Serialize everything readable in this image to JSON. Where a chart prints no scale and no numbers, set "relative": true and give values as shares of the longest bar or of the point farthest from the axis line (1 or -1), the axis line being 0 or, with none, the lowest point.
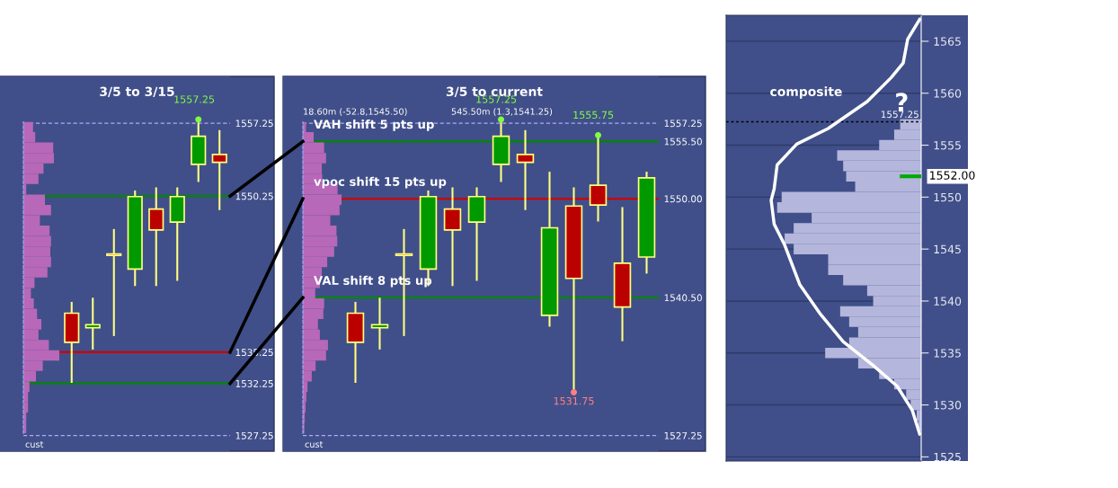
{
  "chart_data": [
    {
      "type": "candlestick",
      "title": "3/5 to 3/15",
      "categories": [
        null,
        null,
        null,
        null,
        null,
        null,
        null,
        null
      ],
      "ylim": [
        1525.75,
        1561.75
      ],
      "tick_labels": "y",
      "yticks": [
        {
          "value": 1557.25,
          "label": "1557.25"
        },
        {
          "value": 1550.25,
          "label": "1550.25"
        },
        {
          "value": 1535.25,
          "label": "1535.25"
        },
        {
          "value": 1532.25,
          "label": "1532.25"
        },
        {
          "value": 1527.25,
          "label": "1527.25"
        }
      ],
      "series": [
        {
          "color": "#ffff80",
          "ohlc": [
            [
              1539,
              1540,
              1532.4,
              1536.2
            ],
            [
              1537.6,
              1540.4,
              1535.6,
              1537.9
            ],
            [
              1544.7,
              1547,
              1536.9,
              1544.55
            ],
            [
              1543.25,
              1550.7,
              1541.7,
              1550.2
            ],
            [
              1549,
              1551,
              1541.7,
              1547
            ],
            [
              1547.75,
              1551,
              1542.2,
              1550.2
            ],
            [
              1553.3,
              1557.25,
              1551.7,
              1556
            ],
            [
              1554.25,
              1556.5,
              1549,
              1553.5
            ]
          ],
          "colors": [
            "#bb0000",
            "#009900",
            "#bb0000",
            "#009900",
            "#bb0000",
            "#009900",
            "#009900",
            "#bb0000"
          ]
        }
      ],
      "ref_lines": [
        {
          "axis": "y",
          "value": 1557.25,
          "color": "#aaaaff",
          "line_style": "dashed"
        },
        {
          "axis": "y",
          "value": 1550.25,
          "color": "#008800",
          "line_style": "solid"
        },
        {
          "axis": "y",
          "value": 1535.25,
          "color": "#cc0000",
          "line_style": "solid"
        },
        {
          "axis": "y",
          "value": 1532.25,
          "color": "#008800",
          "line_style": "solid"
        },
        {
          "axis": "y",
          "value": 1527.25,
          "color": "#aaaaff",
          "line_style": "dashed"
        }
      ],
      "annotations": [
        "1557.25",
        "cust"
      ]
    },
    {
      "type": "bar",
      "orientation": "horizontal",
      "relative": true,
      "color": "#b868b8",
      "categories": [
        null,
        null,
        null,
        null,
        null,
        null,
        null,
        null,
        null,
        null,
        null,
        null,
        null,
        null,
        null,
        null,
        null,
        null,
        null,
        null,
        null,
        null,
        null,
        null,
        null,
        null,
        null,
        null,
        null,
        null
      ],
      "values": [
        0.27,
        0.33,
        0.83,
        0.85,
        0.56,
        0.42,
        0.08,
        0.6,
        0.77,
        0.46,
        0.73,
        0.77,
        0.75,
        0.77,
        0.67,
        0.31,
        0.21,
        0.29,
        0.38,
        0.5,
        0.42,
        0.71,
        1,
        0.54,
        0.35,
        0.17,
        0.13,
        0.13,
        0.08,
        0.08
      ]
    },
    {
      "type": "candlestick",
      "title": "3/5 to current",
      "categories": [
        null,
        null,
        null,
        null,
        null,
        null,
        null,
        null,
        null,
        null,
        null,
        null,
        null
      ],
      "ylim": [
        1525.75,
        1561.75
      ],
      "tick_labels": "y",
      "yticks": [
        {
          "value": 1557.25,
          "label": "1557.25"
        },
        {
          "value": 1555.5,
          "label": "1555.50"
        },
        {
          "value": 1550,
          "label": "1550.00"
        },
        {
          "value": 1540.5,
          "label": "1540.50"
        },
        {
          "value": 1527.25,
          "label": "1527.25"
        }
      ],
      "series": [
        {
          "color": "#ffff80",
          "ohlc": [
            [
              1539,
              1540,
              1532.4,
              1536.2
            ],
            [
              1537.6,
              1540.4,
              1535.6,
              1537.9
            ],
            [
              1544.7,
              1547,
              1536.9,
              1544.55
            ],
            [
              1543.25,
              1550.7,
              1541.7,
              1550.2
            ],
            [
              1549,
              1551,
              1541.7,
              1547
            ],
            [
              1547.75,
              1551,
              1542.2,
              1550.2
            ],
            [
              1553.3,
              1557.25,
              1551.7,
              1556
            ],
            [
              1554.25,
              1556.5,
              1549,
              1553.5
            ],
            [
              1538.8,
              1552.5,
              1537.8,
              1547.2
            ],
            [
              1549.3,
              1551,
              1531.75,
              1542.35
            ],
            [
              1551.3,
              1555.75,
              1547.9,
              1549.4
            ],
            [
              1543.8,
              1549.1,
              1536.4,
              1539.6
            ],
            [
              1544.4,
              1552.5,
              1542.9,
              1552
            ]
          ],
          "colors": [
            "#bb0000",
            "#009900",
            "#bb0000",
            "#009900",
            "#bb0000",
            "#009900",
            "#009900",
            "#bb0000",
            "#009900",
            "#bb0000",
            "#bb0000",
            "#bb0000",
            "#009900"
          ]
        }
      ],
      "ref_lines": [
        {
          "axis": "y",
          "value": 1557.25,
          "color": "#aaaaff",
          "line_style": "dashed"
        },
        {
          "axis": "y",
          "value": 1555.5,
          "color": "#008800",
          "line_style": "solid"
        },
        {
          "axis": "y",
          "value": 1550,
          "color": "#cc0000",
          "line_style": "solid"
        },
        {
          "axis": "y",
          "value": 1540.5,
          "color": "#008800",
          "line_style": "solid"
        },
        {
          "axis": "y",
          "value": 1527.25,
          "color": "#aaaaff",
          "line_style": "dashed"
        }
      ],
      "annotations": [
        {
          "text": "VAH shift 5 pts up",
          "y": 1555.5
        },
        {
          "text": "vpoc shift 15 pts up",
          "y": 1550
        },
        {
          "text": "VAL shift 8 pts up",
          "y": 1540.5
        },
        "18.60m (-52.8,1545.50)",
        "545.50m (1.3,1541.25)",
        "1557.25",
        "1555.75",
        "1531.75",
        "cust"
      ]
    },
    {
      "type": "bar",
      "orientation": "horizontal",
      "relative": true,
      "color": "#b868b8",
      "categories": [
        null,
        null,
        null,
        null,
        null,
        null,
        null,
        null,
        null,
        null,
        null,
        null,
        null,
        null,
        null,
        null,
        null,
        null,
        null,
        null,
        null,
        null,
        null,
        null,
        null,
        null,
        null,
        null,
        null,
        null
      ],
      "values": [
        0.08,
        0.28,
        0.55,
        0.6,
        0.49,
        0.5,
        0.9,
        1,
        0.95,
        0.71,
        0.87,
        0.89,
        0.81,
        0.63,
        0.49,
        0.44,
        0.32,
        0.55,
        0.53,
        0.39,
        0.44,
        0.65,
        0.6,
        0.33,
        0.23,
        0.12,
        0.09,
        0.07,
        0.05,
        0.04
      ]
    },
    {
      "type": "bar",
      "title": "composite",
      "orientation": "horizontal",
      "relative": true,
      "ylim": [
        1524.6,
        1567.5
      ],
      "yticks": [
        1525,
        1530,
        1535,
        1540,
        1545,
        1550,
        1555,
        1560,
        1565
      ],
      "grid": "y",
      "tick_labels": "y",
      "series": [
        {
          "type": "bar",
          "color": "#b4b6dc",
          "x": [
            1557,
            1556,
            1555,
            1554,
            1553,
            1552,
            1551,
            1550,
            1549,
            1548,
            1547,
            1546,
            1545,
            1544,
            1543,
            1542,
            1541,
            1540,
            1539,
            1538,
            1537,
            1536,
            1535,
            1534,
            1533,
            1532,
            1531,
            1530,
            1529,
            1528
          ],
          "values": [
            0.14,
            0.18,
            0.28,
            0.56,
            0.52,
            0.5,
            0.44,
            0.93,
            0.96,
            0.73,
            0.85,
            0.91,
            0.85,
            0.62,
            0.62,
            0.52,
            0.36,
            0.32,
            0.54,
            0.48,
            0.42,
            0.48,
            0.64,
            0.42,
            0.28,
            0.18,
            0.1,
            0.07,
            0.03,
            0.02
          ]
        },
        {
          "type": "line",
          "color": "#ffffff",
          "x": [
            1567.1,
            1565.2,
            1562.9,
            1561.5,
            1559.2,
            1556.6,
            1555.1,
            1553.1,
            1550.8,
            1549.7,
            1547.4,
            1545.4,
            1541.6,
            1538.7,
            1536.1,
            1533.8,
            1531.8,
            1529.5,
            1527.2
          ],
          "values": [
            0.01,
            0.09,
            0.12,
            0.2,
            0.36,
            0.62,
            0.83,
            0.96,
            0.98,
            1,
            0.98,
            0.91,
            0.81,
            0.67,
            0.52,
            0.32,
            0.16,
            0.06,
            0.01
          ]
        }
      ],
      "ref_lines": [
        {
          "axis": "y",
          "value": 1557.25,
          "label": "1557.25",
          "color": "#000000",
          "line_style": "dotted"
        },
        {
          "axis": "y",
          "value": 1552,
          "label": "1552.00",
          "color": "#00aa00",
          "line_style": "solid"
        }
      ],
      "annotations": [
        "?"
      ]
    }
  ]
}
